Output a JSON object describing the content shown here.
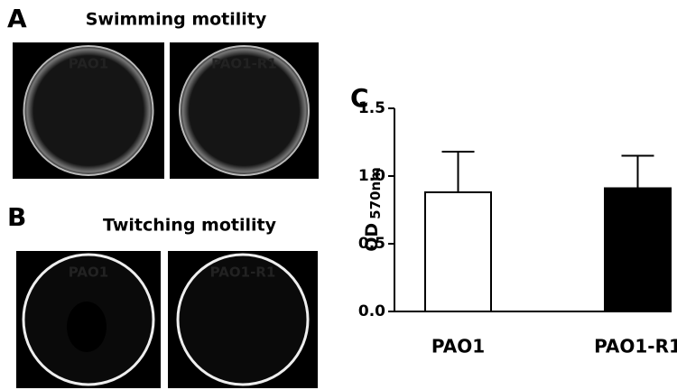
{
  "panels": [
    {
      "label": "A",
      "title": "Swimming motility",
      "images": [
        "PAO1",
        "PAO1-R1"
      ]
    },
    {
      "label": "B",
      "title": "Twitching motility",
      "images": [
        "PAO1",
        "PAO1-R1"
      ]
    }
  ],
  "chart_data": {
    "type": "bar",
    "label": "C",
    "ylabel": "OD",
    "ylabel_sub": "570nm",
    "categories": [
      "PAO1",
      "PAO1-R1"
    ],
    "values": [
      0.88,
      0.91
    ],
    "errors": [
      0.3,
      0.24
    ],
    "colors": [
      "#ffffff",
      "#000000"
    ],
    "ylim": [
      0,
      1.5
    ],
    "yticks": [
      {
        "value": 0,
        "label": "0.0"
      },
      0.5,
      {
        "value": 1,
        "label": "1.0"
      },
      1.5
    ]
  }
}
